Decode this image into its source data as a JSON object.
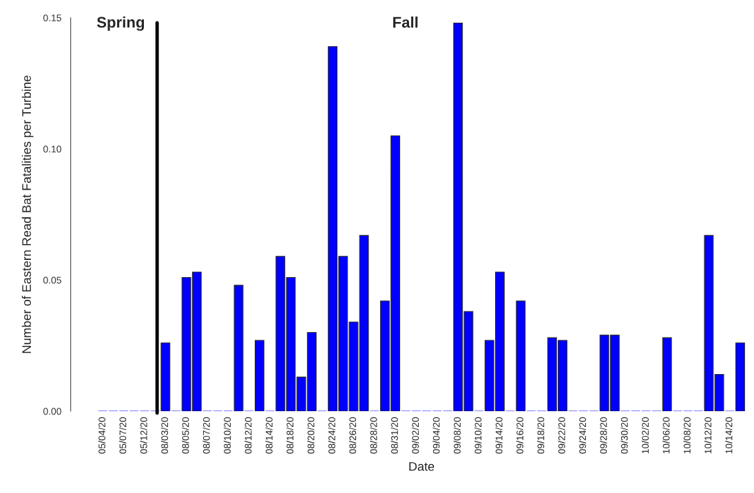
{
  "chart_data": {
    "type": "bar",
    "xlabel": "Date",
    "ylabel": "Number of Eastern Read Bat Fatalities per Turbine",
    "categories": [
      "05/04/20",
      null,
      "05/07/20",
      null,
      "05/12/20",
      null,
      "08/03/20",
      null,
      "08/05/20",
      null,
      "08/07/20",
      null,
      "08/10/20",
      null,
      "08/12/20",
      null,
      "08/14/20",
      null,
      "08/18/20",
      null,
      "08/20/20",
      null,
      "08/24/20",
      null,
      "08/26/20",
      null,
      "08/28/20",
      null,
      "08/31/20",
      null,
      "09/02/20",
      null,
      "09/04/20",
      null,
      "09/08/20",
      null,
      "09/10/20",
      null,
      "09/14/20",
      null,
      "09/16/20",
      null,
      "09/18/20",
      null,
      "09/22/20",
      null,
      "09/24/20",
      null,
      "09/28/20",
      null,
      "09/30/20",
      null,
      "10/02/20",
      null,
      "10/06/20",
      null,
      "10/08/20",
      null,
      "10/12/20",
      null,
      "10/14/20",
      null
    ],
    "values": [
      0,
      0,
      0,
      0,
      0,
      0,
      0.026,
      0,
      0.051,
      0.053,
      0,
      0,
      0,
      0.048,
      0,
      0.027,
      0,
      0.059,
      0.051,
      0.013,
      0.03,
      0,
      0.139,
      0.059,
      0.034,
      0.067,
      0,
      0.042,
      0.105,
      0,
      0,
      0,
      0,
      0,
      0.148,
      0.038,
      0,
      0.027,
      0.053,
      0,
      0.042,
      0,
      0,
      0.028,
      0.027,
      0,
      0,
      0,
      0.029,
      0.029,
      0,
      0,
      0,
      0,
      0.028,
      0,
      0,
      0,
      0.067,
      0.014,
      0,
      0.026
    ],
    "color": "#0000ff",
    "ylim": [
      0,
      0.15
    ],
    "yticks": [
      {
        "value": 0,
        "label": "0.00"
      },
      {
        "value": 0.05,
        "label": "0.05"
      },
      {
        "value": 0.1,
        "label": "0.10"
      },
      {
        "value": 0.15,
        "label": "0.15"
      }
    ],
    "annotations": [
      "Spring",
      "Fall"
    ],
    "grid": false,
    "legend": false
  }
}
